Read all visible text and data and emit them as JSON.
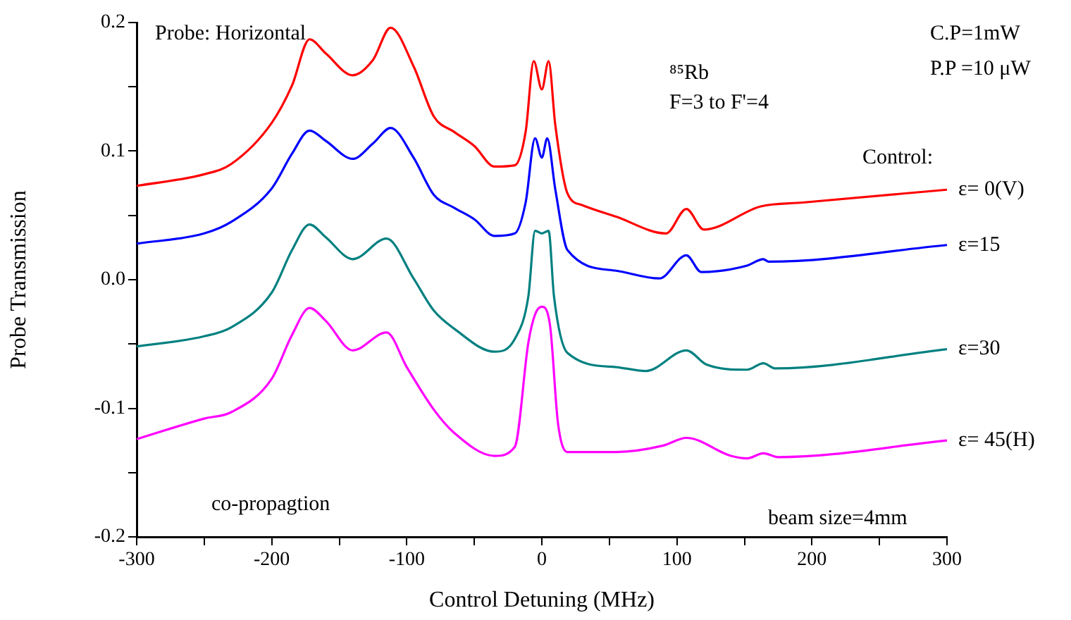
{
  "chart_data": {
    "type": "line",
    "xlabel": "Control Detuning (MHz)",
    "ylabel": "Probe Transmission",
    "annotations": [
      "Probe: Horizontal",
      "⁸⁵Rb",
      "F=3 to F'=4",
      "C.P=1mW",
      "P.P =10 μW",
      "Control:",
      "co-propagtion",
      "beam size=4mm"
    ],
    "xlim": [
      -300,
      300
    ],
    "xticks": [
      -300,
      {
        "value": -250,
        "label": null
      },
      -200,
      {
        "value": -150,
        "label": null
      },
      -100,
      {
        "value": -50,
        "label": null
      },
      0,
      {
        "value": 50,
        "label": null
      },
      100,
      {
        "value": 150,
        "label": null
      },
      200,
      {
        "value": 250,
        "label": null
      },
      300
    ],
    "ylim": [
      -0.2,
      0.2
    ],
    "yticks": [
      -0.2,
      {
        "value": -0.15,
        "label": null
      },
      -0.1,
      {
        "value": -0.05,
        "label": null
      },
      {
        "value": 0,
        "label": "0.0"
      },
      {
        "value": 0.05,
        "label": null
      },
      0.1,
      {
        "value": 0.15,
        "label": null
      },
      0.2
    ],
    "grid": false,
    "legend": false,
    "marker": "none",
    "line_style": "solid",
    "series": [
      {
        "name": "ε= 0(V)",
        "color": "#ff0000",
        "x": [
          -300,
          -250,
          -230,
          -200,
          -185,
          -172,
          -160,
          -140,
          -125,
          -112,
          -95,
          -80,
          -65,
          -50,
          -35,
          -20,
          -12,
          -6,
          0,
          5,
          10,
          19,
          30,
          55,
          92,
          107,
          120,
          162,
          193,
          300
        ],
        "values": [
          0.073,
          0.082,
          0.09,
          0.122,
          0.151,
          0.187,
          0.176,
          0.159,
          0.171,
          0.196,
          0.166,
          0.127,
          0.115,
          0.104,
          0.088,
          0.089,
          0.115,
          0.17,
          0.148,
          0.17,
          0.12,
          0.067,
          0.058,
          0.049,
          0.036,
          0.055,
          0.039,
          0.057,
          0.06,
          0.07
        ]
      },
      {
        "name": "ε=15",
        "color": "#0000ff",
        "x": [
          -300,
          -250,
          -230,
          -200,
          -185,
          -172,
          -160,
          -140,
          -125,
          -112,
          -95,
          -80,
          -65,
          -50,
          -35,
          -20,
          -12,
          -5,
          0,
          4,
          10,
          19,
          55,
          87,
          107,
          118,
          152,
          164,
          168,
          300
        ],
        "values": [
          0.028,
          0.036,
          0.045,
          0.071,
          0.098,
          0.116,
          0.108,
          0.094,
          0.106,
          0.118,
          0.095,
          0.066,
          0.056,
          0.047,
          0.034,
          0.036,
          0.06,
          0.11,
          0.095,
          0.11,
          0.07,
          0.023,
          0.007,
          0.001,
          0.019,
          0.006,
          0.011,
          0.016,
          0.014,
          0.027
        ]
      },
      {
        "name": "ε=30",
        "color": "#008080",
        "x": [
          -300,
          -250,
          -230,
          -200,
          -185,
          -172,
          -160,
          -140,
          -115,
          -95,
          -80,
          -65,
          -35,
          -20,
          -10,
          -5,
          0,
          5,
          9,
          19,
          55,
          77,
          107,
          122,
          152,
          164,
          173,
          300
        ],
        "values": [
          -0.052,
          -0.044,
          -0.037,
          -0.01,
          0.023,
          0.043,
          0.033,
          0.016,
          0.032,
          0.001,
          -0.024,
          -0.038,
          -0.056,
          -0.046,
          -0.013,
          0.038,
          0.036,
          0.038,
          -0.013,
          -0.057,
          -0.068,
          -0.071,
          -0.055,
          -0.066,
          -0.07,
          -0.065,
          -0.069,
          -0.054
        ]
      },
      {
        "name": "ε= 45(H)",
        "color": "#ff00ff",
        "x": [
          -300,
          -250,
          -230,
          -200,
          -185,
          -172,
          -160,
          -140,
          -115,
          -100,
          -80,
          -65,
          -35,
          -20,
          -10,
          -5,
          0,
          6,
          12,
          19,
          55,
          90,
          107,
          140,
          152,
          164,
          175,
          300
        ],
        "values": [
          -0.124,
          -0.108,
          -0.103,
          -0.077,
          -0.043,
          -0.022,
          -0.032,
          -0.055,
          -0.041,
          -0.068,
          -0.101,
          -0.119,
          -0.137,
          -0.13,
          -0.049,
          -0.027,
          -0.021,
          -0.035,
          -0.112,
          -0.134,
          -0.134,
          -0.129,
          -0.123,
          -0.137,
          -0.139,
          -0.135,
          -0.138,
          -0.125
        ]
      }
    ]
  }
}
